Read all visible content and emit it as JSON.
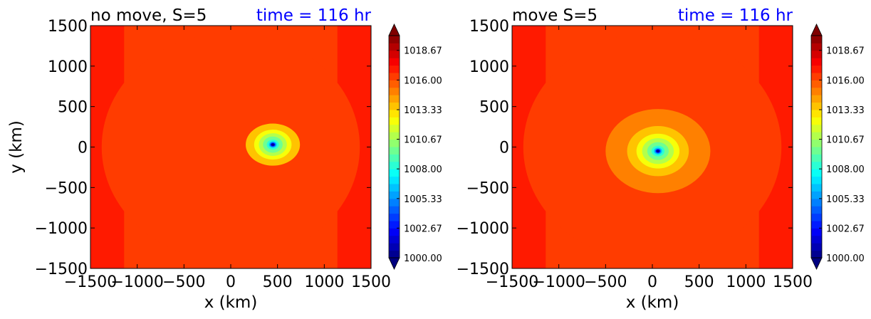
{
  "chart_data": [
    {
      "type": "filled-contour",
      "title_left": "no move, S=5",
      "title_right": "time = 116 hr",
      "title_right_color": "#0000ff",
      "xlabel": "x (km)",
      "ylabel": "y (km)",
      "xlim": [
        -1500,
        1500
      ],
      "ylim": [
        -1500,
        1500
      ],
      "xticks": [
        -1500,
        -1000,
        -500,
        0,
        500,
        1000,
        1500
      ],
      "yticks": [
        -1500,
        -1000,
        -500,
        0,
        500,
        1000,
        1500
      ],
      "xtick_labels": [
        "−1500",
        "−1000",
        "−500",
        "0",
        "500",
        "1000",
        "1500"
      ],
      "ytick_labels": [
        "−1500",
        "−1000",
        "−500",
        "0",
        "500",
        "1000",
        "1500"
      ],
      "field": "surface pressure (hPa)",
      "background_value": 1016.5,
      "center": {
        "x": 450,
        "y": 30
      },
      "min_value": 1000.0,
      "inner_rings": [
        {
          "value": 1013.4,
          "rx": 290,
          "ry": 260
        },
        {
          "value": 1012.3,
          "rx": 200,
          "ry": 185
        },
        {
          "value": 1011.2,
          "rx": 150,
          "ry": 140
        },
        {
          "value": 1009.8,
          "rx": 105,
          "ry": 100
        },
        {
          "value": 1008.2,
          "rx": 65,
          "ry": 62
        },
        {
          "value": 1006.5,
          "rx": 42,
          "ry": 40
        },
        {
          "value": 1004.5,
          "rx": 30,
          "ry": 28
        },
        {
          "value": 1002.2,
          "rx": 22,
          "ry": 20
        },
        {
          "value": 1000.2,
          "rx": 16,
          "ry": 14
        }
      ],
      "colorbar": {
        "min": 1000.0,
        "max": 1020.0,
        "levels": 30,
        "tick_values": [
          1000.0,
          1002.67,
          1005.33,
          1008.0,
          1010.67,
          1013.33,
          1016.0,
          1018.67
        ],
        "tick_labels": [
          "1000.00",
          "1002.67",
          "1005.33",
          "1008.00",
          "1010.67",
          "1013.33",
          "1016.00",
          "1018.67"
        ],
        "extend": "both",
        "colormap": "jet"
      }
    },
    {
      "type": "filled-contour",
      "title_left": "move S=5",
      "title_right": "time = 116 hr",
      "title_right_color": "#0000ff",
      "xlabel": "x (km)",
      "ylabel": "",
      "xlim": [
        -1500,
        1500
      ],
      "ylim": [
        -1500,
        1500
      ],
      "xticks": [
        -1500,
        -1000,
        -500,
        0,
        500,
        1000,
        1500
      ],
      "yticks": [
        -1500,
        -1000,
        -500,
        0,
        500,
        1000,
        1500
      ],
      "xtick_labels": [
        "−1500",
        "−1000",
        "−500",
        "0",
        "500",
        "1000",
        "1500"
      ],
      "ytick_labels": [
        "−1500",
        "−1000",
        "−500",
        "0",
        "500",
        "1000",
        "1500"
      ],
      "field": "surface pressure (hPa)",
      "background_value": 1016.2,
      "center": {
        "x": 60,
        "y": -50
      },
      "min_value": 1000.0,
      "inner_rings": [
        {
          "value": 1014.8,
          "rx": 560,
          "ry": 520
        },
        {
          "value": 1013.4,
          "rx": 330,
          "ry": 310
        },
        {
          "value": 1012.3,
          "rx": 230,
          "ry": 215
        },
        {
          "value": 1011.2,
          "rx": 170,
          "ry": 160
        },
        {
          "value": 1009.8,
          "rx": 115,
          "ry": 110
        },
        {
          "value": 1008.2,
          "rx": 70,
          "ry": 66
        },
        {
          "value": 1006.5,
          "rx": 44,
          "ry": 42
        },
        {
          "value": 1004.5,
          "rx": 30,
          "ry": 28
        },
        {
          "value": 1002.2,
          "rx": 22,
          "ry": 20
        },
        {
          "value": 1000.2,
          "rx": 16,
          "ry": 14
        }
      ],
      "colorbar": {
        "min": 1000.0,
        "max": 1020.0,
        "levels": 30,
        "tick_values": [
          1000.0,
          1002.67,
          1005.33,
          1008.0,
          1010.67,
          1013.33,
          1016.0,
          1018.67
        ],
        "tick_labels": [
          "1000.00",
          "1002.67",
          "1005.33",
          "1008.00",
          "1010.67",
          "1013.33",
          "1016.00",
          "1018.67"
        ],
        "extend": "both",
        "colormap": "jet"
      }
    }
  ]
}
